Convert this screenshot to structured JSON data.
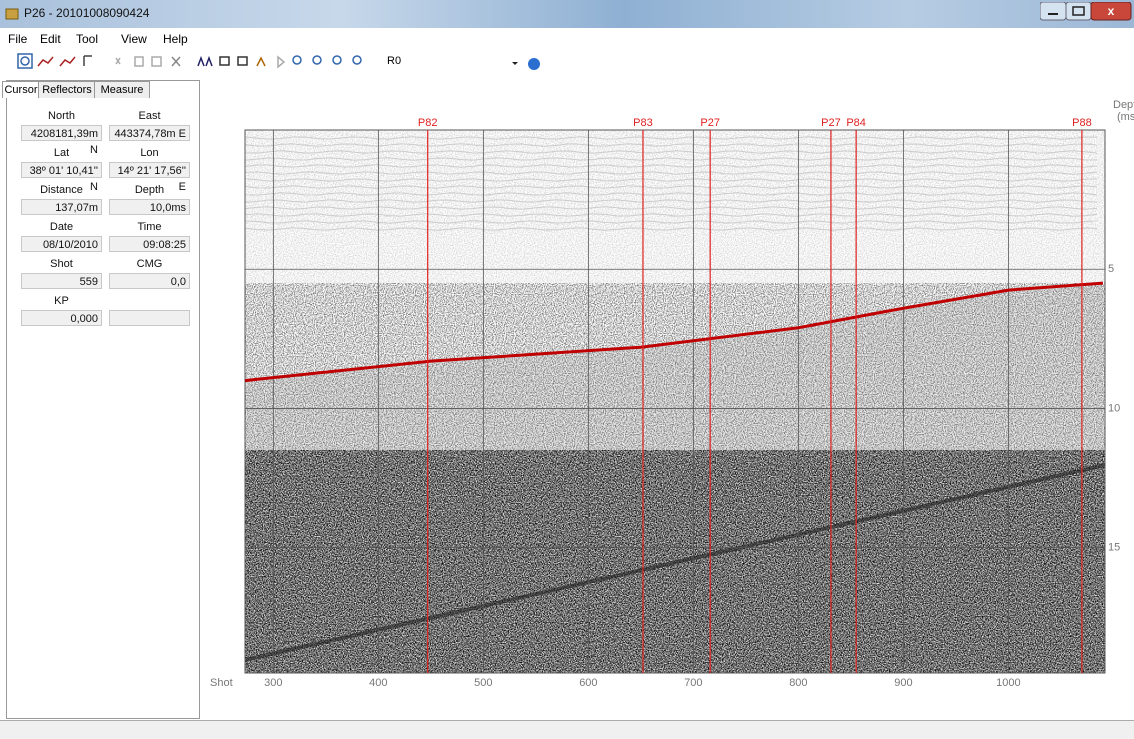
{
  "window": {
    "title": "P26 - 20101008090424"
  },
  "menu": [
    "File",
    "Edit",
    "Tool",
    "View",
    "Help"
  ],
  "toolbar": {
    "dropdown": "R0"
  },
  "tabs": [
    "Cursor",
    "Reflectors",
    "Measure"
  ],
  "cursor_fields": [
    {
      "label": "North",
      "value": "4208181,39m N"
    },
    {
      "label": "East",
      "value": "443374,78m E"
    },
    {
      "label": "Lat",
      "value": "38º 01' 10,41'' N"
    },
    {
      "label": "Lon",
      "value": "14º 21' 17,56'' E"
    },
    {
      "label": "Distance",
      "value": "137,07m"
    },
    {
      "label": "Depth",
      "value": "10,0ms"
    },
    {
      "label": "Date",
      "value": "08/10/2010"
    },
    {
      "label": "Time",
      "value": "09:08:25"
    },
    {
      "label": "Shot",
      "value": "559"
    },
    {
      "label": "CMG",
      "value": "0,0"
    },
    {
      "label": "KP",
      "value": "0,000"
    }
  ],
  "chart_data": {
    "type": "line",
    "x_label": "Shot",
    "y_label": "Dept",
    "y_unit": "(ms",
    "xlim": [
      273,
      1092
    ],
    "xticks": [
      300,
      400,
      500,
      600,
      700,
      800,
      900,
      1000
    ],
    "ylim": [
      0,
      19.5
    ],
    "yticks": [
      5,
      10,
      15
    ],
    "y_inverted": true,
    "grid": true,
    "markers": [
      {
        "label": "P82",
        "x": 447
      },
      {
        "label": "P83",
        "x": 652
      },
      {
        "label": "P27",
        "x": 716
      },
      {
        "label": "P27",
        "x": 831
      },
      {
        "label": "P84",
        "x": 855
      },
      {
        "label": "P88",
        "x": 1070
      }
    ],
    "marker_color": "#e02020",
    "x": [
      273,
      450,
      650,
      800,
      900,
      1000,
      1090
    ],
    "series": [
      {
        "color": "#c00000",
        "values": [
          9.0,
          8.3,
          7.8,
          7.1,
          6.4,
          5.75,
          5.5
        ]
      }
    ]
  }
}
